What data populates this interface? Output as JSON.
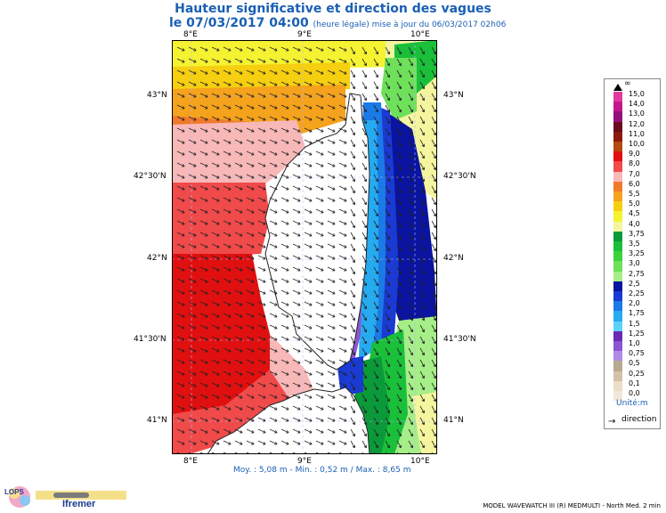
{
  "header": {
    "title": "Hauteur significative et direction des vagues",
    "datetime": "le 07/03/2017 04:00",
    "update_note": "(heure légale) mise à jour du 06/03/2017 02h06"
  },
  "axes": {
    "lon_labels": [
      "8°E",
      "9°E",
      "10°E"
    ],
    "lat_labels": [
      "43°N",
      "42°30'N",
      "42°N",
      "41°30'N",
      "41°N"
    ]
  },
  "legend": {
    "unit": "Unité:m",
    "direction_label": "direction",
    "top_label": "∞",
    "classes": [
      {
        "label": "15,0",
        "color": "#e23a9c"
      },
      {
        "label": "14,0",
        "color": "#c2188a"
      },
      {
        "label": "13,0",
        "color": "#92127a"
      },
      {
        "label": "12,0",
        "color": "#6a0c20"
      },
      {
        "label": "11,0",
        "color": "#8b1a0a"
      },
      {
        "label": "10,0",
        "color": "#b34a12"
      },
      {
        "label": "9,0",
        "color": "#e01010"
      },
      {
        "label": "8,0",
        "color": "#f04a4a"
      },
      {
        "label": "7,0",
        "color": "#f8b8b8"
      },
      {
        "label": "6,0",
        "color": "#f07a2a"
      },
      {
        "label": "5,5",
        "color": "#f5a21c"
      },
      {
        "label": "5,0",
        "color": "#f5cf10"
      },
      {
        "label": "4,5",
        "color": "#f5f232"
      },
      {
        "label": "4,0",
        "color": "#f5f5a0"
      },
      {
        "label": "3,75",
        "color": "#0a9a3a"
      },
      {
        "label": "3,5",
        "color": "#1abf3a"
      },
      {
        "label": "3,25",
        "color": "#3cd23c"
      },
      {
        "label": "3,0",
        "color": "#6ee05a"
      },
      {
        "label": "2,75",
        "color": "#a6ee88"
      },
      {
        "label": "2,5",
        "color": "#0a14a0"
      },
      {
        "label": "2,25",
        "color": "#1a3ad2"
      },
      {
        "label": "2,0",
        "color": "#1a7ae6"
      },
      {
        "label": "1,75",
        "color": "#26aaf0"
      },
      {
        "label": "1,5",
        "color": "#5cd2f8"
      },
      {
        "label": "1,25",
        "color": "#6a2ab2"
      },
      {
        "label": "1,0",
        "color": "#8a56d2"
      },
      {
        "label": "0,75",
        "color": "#b08ae6"
      },
      {
        "label": "0,5",
        "color": "#b8aa90"
      },
      {
        "label": "0,25",
        "color": "#d2c2a8"
      },
      {
        "label": "0,1",
        "color": "#ecdcc8"
      },
      {
        "label": "0,0",
        "color": "#f2e8da"
      }
    ]
  },
  "stats": {
    "text": "Moy. : 5,08 m  -  Min. : 0,52 m / Max. : 8,65 m"
  },
  "footer": {
    "model": "MODEL WAVEWATCH III (R) MEDMULTI - North Med. 2 min",
    "logo_lops": "LOPS",
    "logo_ifremer": "Ifremer"
  }
}
